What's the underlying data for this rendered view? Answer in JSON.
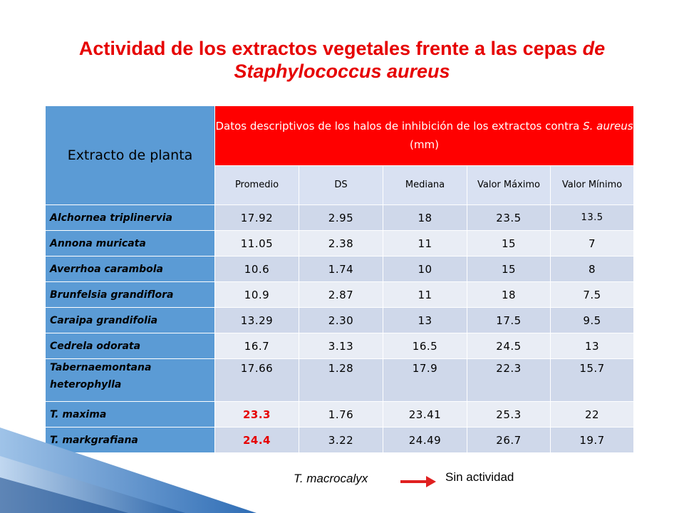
{
  "title": {
    "main": "Actividad de los extractos vegetales frente a las cepas ",
    "italic1": "de",
    "italic2": "Staphylococcus aureus"
  },
  "table": {
    "plant_header": "Extracto de planta",
    "group_header_a": "Datos descriptivos de los halos de inhibición de los extractos contra ",
    "group_header_species": "S. aureus",
    "group_header_b": " (mm)",
    "columns": [
      "Promedio",
      "DS",
      "Mediana",
      "Valor Máximo",
      "Valor Mínimo"
    ],
    "rows": [
      {
        "name": "Alchornea triplinervia",
        "values": [
          "17.92",
          "2.95",
          "18",
          "23.5",
          "13.5"
        ]
      },
      {
        "name": "Annona muricata",
        "values": [
          "11.05",
          "2.38",
          "11",
          "15",
          "7"
        ]
      },
      {
        "name": "Averrhoa carambola",
        "values": [
          "10.6",
          "1.74",
          "10",
          "15",
          "8"
        ]
      },
      {
        "name": "Brunfelsia grandiflora",
        "values": [
          "10.9",
          "2.87",
          "11",
          "18",
          "7.5"
        ]
      },
      {
        "name": "Caraipa grandifolia",
        "values": [
          "13.29",
          "2.30",
          "13",
          "17.5",
          "9.5"
        ]
      },
      {
        "name": "Cedrela odorata",
        "values": [
          "16.7",
          "3.13",
          "16.5",
          "24.5",
          "13"
        ]
      },
      {
        "name": "Tabernaemontana heterophylla",
        "values": [
          "17.66",
          "1.28",
          "17.9",
          "22.3",
          "15.7"
        ]
      },
      {
        "name": "T. maxima",
        "values": [
          "23.3",
          "1.76",
          "23.41",
          "25.3",
          "22"
        ]
      },
      {
        "name": "T. markgrafiana",
        "values": [
          "24.4",
          "3.22",
          "24.49",
          "26.7",
          "19.7"
        ]
      }
    ]
  },
  "legend": {
    "species": "T. macrocalyx",
    "result": "Sin actividad"
  },
  "colors": {
    "title_red": "#e60000",
    "header_red": "#ff0000",
    "header_blue": "#5b9bd5",
    "arrow_red": "#e02020"
  }
}
